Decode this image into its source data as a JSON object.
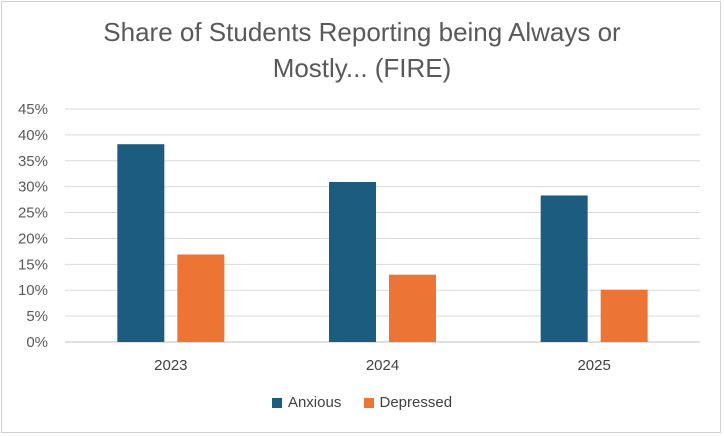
{
  "chart_data": {
    "type": "bar",
    "title_lines": [
      "Share of Students Reporting being Always or",
      "Mostly... (FIRE)"
    ],
    "categories": [
      "2023",
      "2024",
      "2025"
    ],
    "series": [
      {
        "name": "Anxious",
        "color": "#1b5c7f",
        "values": [
          38.2,
          30.9,
          28.3
        ]
      },
      {
        "name": "Depressed",
        "color": "#ec7434",
        "values": [
          16.9,
          13.0,
          10.1
        ]
      }
    ],
    "ylim": [
      0,
      45
    ],
    "yticks": [
      "0%",
      "5%",
      "10%",
      "15%",
      "20%",
      "25%",
      "30%",
      "35%",
      "40%",
      "45%"
    ],
    "ytick_values": [
      0,
      5,
      10,
      15,
      20,
      25,
      30,
      35,
      40,
      45
    ],
    "grid": true,
    "legend_position": "bottom"
  }
}
